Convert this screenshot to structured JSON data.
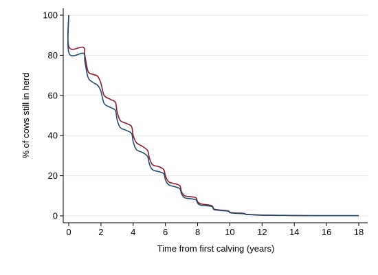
{
  "chart_data": {
    "type": "line",
    "title": "",
    "xlabel": "Time from first calving (years)",
    "ylabel": "% of cows still in herd",
    "xlim": [
      0,
      18
    ],
    "ylim": [
      0,
      100
    ],
    "x_ticks": [
      "0",
      "2",
      "4",
      "6",
      "8",
      "10",
      "12",
      "14",
      "16",
      "18"
    ],
    "y_ticks": [
      "0",
      "20",
      "40",
      "60",
      "80",
      "100"
    ],
    "grid": "horizontal",
    "legend": "none",
    "series": [
      {
        "color": "#8b1a2b",
        "points": [
          [
            0,
            100
          ],
          [
            0.02,
            84
          ],
          [
            0.9,
            84
          ],
          [
            1.0,
            80
          ],
          [
            1.2,
            72
          ],
          [
            1.5,
            70.5
          ],
          [
            1.8,
            69.5
          ],
          [
            2.0,
            66
          ],
          [
            2.2,
            60
          ],
          [
            2.6,
            58
          ],
          [
            2.9,
            56.5
          ],
          [
            3.0,
            52
          ],
          [
            3.2,
            47.5
          ],
          [
            3.6,
            46
          ],
          [
            3.9,
            44.5
          ],
          [
            4.0,
            40
          ],
          [
            4.2,
            36.5
          ],
          [
            4.6,
            34.5
          ],
          [
            4.9,
            32.5
          ],
          [
            5.0,
            29
          ],
          [
            5.2,
            25.5
          ],
          [
            5.6,
            24.5
          ],
          [
            5.9,
            23
          ],
          [
            6.0,
            20
          ],
          [
            6.2,
            17
          ],
          [
            6.6,
            16
          ],
          [
            6.9,
            15
          ],
          [
            7.0,
            12
          ],
          [
            7.2,
            10
          ],
          [
            7.6,
            9.5
          ],
          [
            7.9,
            9
          ],
          [
            8.0,
            7
          ],
          [
            8.2,
            6
          ],
          [
            8.6,
            5.5
          ],
          [
            8.9,
            5
          ],
          [
            9.0,
            3.5
          ],
          [
            9.3,
            3
          ],
          [
            9.9,
            2.5
          ],
          [
            10.0,
            1.8
          ],
          [
            10.3,
            1.5
          ],
          [
            10.9,
            1.2
          ],
          [
            11.0,
            0.8
          ],
          [
            11.5,
            0.6
          ],
          [
            12.0,
            0.4
          ],
          [
            13.0,
            0.3
          ],
          [
            14.0,
            0.2
          ],
          [
            16.0,
            0.1
          ],
          [
            18.0,
            0.1
          ]
        ]
      },
      {
        "color": "#1f4e6b",
        "points": [
          [
            0,
            100
          ],
          [
            0.02,
            81
          ],
          [
            0.9,
            81
          ],
          [
            1.0,
            77
          ],
          [
            1.2,
            69
          ],
          [
            1.5,
            66.5
          ],
          [
            1.8,
            65
          ],
          [
            2.0,
            62
          ],
          [
            2.2,
            56
          ],
          [
            2.6,
            54
          ],
          [
            2.9,
            52.5
          ],
          [
            3.0,
            48
          ],
          [
            3.2,
            44
          ],
          [
            3.6,
            42.5
          ],
          [
            3.9,
            41
          ],
          [
            4.0,
            37
          ],
          [
            4.2,
            33
          ],
          [
            4.6,
            31.5
          ],
          [
            4.9,
            29.5
          ],
          [
            5.0,
            26
          ],
          [
            5.2,
            23
          ],
          [
            5.6,
            22
          ],
          [
            5.9,
            21
          ],
          [
            6.0,
            18
          ],
          [
            6.2,
            15.5
          ],
          [
            6.6,
            14.5
          ],
          [
            6.9,
            13.5
          ],
          [
            7.0,
            11
          ],
          [
            7.2,
            9
          ],
          [
            7.6,
            8.5
          ],
          [
            7.9,
            8
          ],
          [
            8.0,
            6.3
          ],
          [
            8.2,
            5.3
          ],
          [
            8.6,
            5
          ],
          [
            8.9,
            4.6
          ],
          [
            9.0,
            3.2
          ],
          [
            9.3,
            2.8
          ],
          [
            9.9,
            2.3
          ],
          [
            10.0,
            1.6
          ],
          [
            10.3,
            1.3
          ],
          [
            10.9,
            1.0
          ],
          [
            11.0,
            0.7
          ],
          [
            11.5,
            0.5
          ],
          [
            12.0,
            0.3
          ],
          [
            13.0,
            0.25
          ],
          [
            14.0,
            0.15
          ],
          [
            16.0,
            0.1
          ],
          [
            18.0,
            0.1
          ]
        ]
      }
    ]
  }
}
